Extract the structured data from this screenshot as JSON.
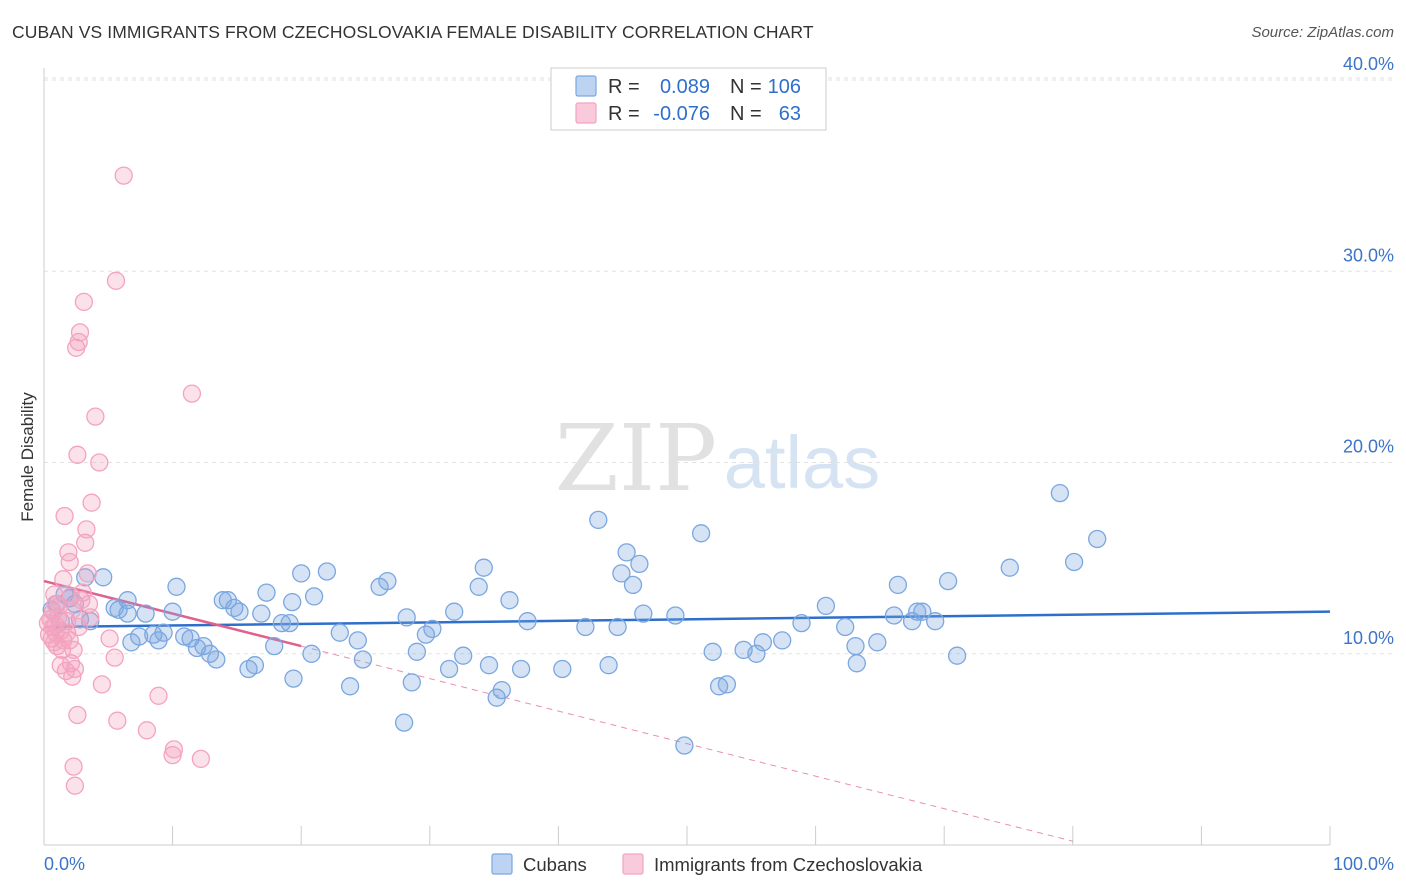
{
  "header": {
    "title": "CUBAN VS IMMIGRANTS FROM CZECHOSLOVAKIA FEMALE DISABILITY CORRELATION CHART",
    "source": "Source: ZipAtlas.com"
  },
  "watermark": {
    "zip": "ZIP",
    "atlas": "atlas"
  },
  "chart_data": {
    "type": "scatter",
    "title": "CUBAN VS IMMIGRANTS FROM CZECHOSLOVAKIA FEMALE DISABILITY CORRELATION CHART",
    "xlabel": "",
    "ylabel": "Female Disability",
    "xlim": [
      0,
      100
    ],
    "ylim": [
      0,
      40
    ],
    "x_tick_labels": {
      "left": "0.0%",
      "right": "100.0%"
    },
    "y_ticks": [
      {
        "value": 10,
        "label": "10.0%"
      },
      {
        "value": 20,
        "label": "20.0%"
      },
      {
        "value": 30,
        "label": "30.0%"
      },
      {
        "value": 40,
        "label": "40.0%"
      }
    ],
    "legend_stats": [
      {
        "r_label": "R =",
        "r_value": "0.089",
        "n_label": "N =",
        "n_value": "106"
      },
      {
        "r_label": "R =",
        "r_value": "-0.076",
        "n_label": "N =",
        "n_value": "63"
      }
    ],
    "series": [
      {
        "name": "Cubans",
        "color": "#7ba7e0",
        "line_color": "#2f6fcc",
        "trend": {
          "x0": 0,
          "y0": 11.4,
          "x1": 100,
          "y1": 12.2
        },
        "points": [
          [
            0.6,
            12.3
          ],
          [
            1.0,
            12.6
          ],
          [
            1.3,
            11.7
          ],
          [
            1.6,
            13.1
          ],
          [
            2.0,
            12.9
          ],
          [
            2.4,
            12.6
          ],
          [
            2.8,
            11.8
          ],
          [
            3.2,
            14.0
          ],
          [
            3.6,
            11.7
          ],
          [
            4.6,
            14.0
          ],
          [
            5.5,
            12.4
          ],
          [
            5.8,
            12.3
          ],
          [
            6.5,
            12.1
          ],
          [
            6.5,
            12.8
          ],
          [
            6.8,
            10.6
          ],
          [
            7.4,
            10.9
          ],
          [
            7.9,
            12.1
          ],
          [
            8.5,
            11.0
          ],
          [
            8.9,
            10.7
          ],
          [
            9.3,
            11.1
          ],
          [
            10.0,
            12.2
          ],
          [
            10.3,
            13.5
          ],
          [
            10.9,
            10.9
          ],
          [
            11.4,
            10.8
          ],
          [
            11.9,
            10.3
          ],
          [
            12.4,
            10.4
          ],
          [
            12.9,
            10.0
          ],
          [
            13.4,
            9.7
          ],
          [
            13.9,
            12.8
          ],
          [
            14.3,
            12.8
          ],
          [
            14.8,
            12.4
          ],
          [
            15.2,
            12.2
          ],
          [
            15.9,
            9.2
          ],
          [
            16.4,
            9.4
          ],
          [
            16.9,
            12.1
          ],
          [
            17.3,
            13.2
          ],
          [
            17.9,
            10.4
          ],
          [
            18.5,
            11.6
          ],
          [
            19.1,
            11.6
          ],
          [
            19.3,
            12.7
          ],
          [
            19.4,
            8.7
          ],
          [
            20.0,
            14.2
          ],
          [
            20.8,
            10.0
          ],
          [
            21.0,
            13.0
          ],
          [
            22.0,
            14.3
          ],
          [
            23.0,
            11.1
          ],
          [
            23.8,
            8.3
          ],
          [
            24.4,
            10.7
          ],
          [
            24.8,
            9.7
          ],
          [
            26.1,
            13.5
          ],
          [
            26.7,
            13.8
          ],
          [
            28.0,
            6.4
          ],
          [
            28.2,
            11.9
          ],
          [
            28.6,
            8.5
          ],
          [
            29.0,
            10.1
          ],
          [
            29.7,
            11.0
          ],
          [
            30.2,
            11.3
          ],
          [
            31.5,
            9.2
          ],
          [
            31.9,
            12.2
          ],
          [
            32.6,
            9.9
          ],
          [
            33.8,
            13.5
          ],
          [
            34.2,
            14.5
          ],
          [
            34.6,
            9.4
          ],
          [
            35.2,
            7.7
          ],
          [
            35.6,
            8.1
          ],
          [
            36.2,
            12.8
          ],
          [
            37.1,
            9.2
          ],
          [
            37.6,
            11.7
          ],
          [
            40.3,
            9.2
          ],
          [
            42.1,
            11.4
          ],
          [
            43.1,
            17.0
          ],
          [
            43.9,
            9.4
          ],
          [
            44.6,
            11.4
          ],
          [
            44.9,
            14.2
          ],
          [
            45.3,
            15.3
          ],
          [
            45.8,
            13.6
          ],
          [
            46.3,
            14.7
          ],
          [
            46.6,
            12.1
          ],
          [
            49.1,
            12.0
          ],
          [
            49.8,
            5.2
          ],
          [
            51.1,
            16.3
          ],
          [
            52.0,
            10.1
          ],
          [
            52.5,
            8.3
          ],
          [
            53.1,
            8.4
          ],
          [
            54.4,
            10.2
          ],
          [
            55.4,
            10.0
          ],
          [
            55.9,
            10.6
          ],
          [
            57.4,
            10.7
          ],
          [
            58.9,
            11.6
          ],
          [
            60.8,
            12.5
          ],
          [
            62.3,
            11.4
          ],
          [
            63.1,
            10.4
          ],
          [
            63.2,
            9.5
          ],
          [
            64.8,
            10.6
          ],
          [
            66.1,
            12.0
          ],
          [
            66.4,
            13.6
          ],
          [
            67.5,
            11.7
          ],
          [
            67.9,
            12.2
          ],
          [
            68.3,
            12.2
          ],
          [
            69.3,
            11.7
          ],
          [
            70.3,
            13.8
          ],
          [
            71.0,
            9.9
          ],
          [
            75.1,
            14.5
          ],
          [
            79.0,
            18.4
          ],
          [
            80.1,
            14.8
          ],
          [
            81.9,
            16.0
          ]
        ]
      },
      {
        "name": "Immigrants from Czechoslovakia",
        "color": "#f4a3bf",
        "line_color": "#e0608e",
        "trend": {
          "x0": 0,
          "y0": 13.8,
          "x1": 20,
          "y1": 10.4
        },
        "trend_dashed": {
          "x0": 20,
          "y0": 10.4,
          "x1": 80,
          "y1": 0.2
        },
        "points": [
          [
            0.3,
            11.6
          ],
          [
            0.4,
            11.0
          ],
          [
            0.5,
            11.8
          ],
          [
            0.6,
            10.8
          ],
          [
            0.7,
            12.2
          ],
          [
            0.7,
            11.4
          ],
          [
            0.8,
            13.1
          ],
          [
            0.8,
            10.6
          ],
          [
            0.9,
            11.5
          ],
          [
            0.9,
            11.1
          ],
          [
            1.0,
            10.4
          ],
          [
            1.1,
            11.9
          ],
          [
            1.2,
            12.5
          ],
          [
            1.3,
            9.4
          ],
          [
            1.3,
            11.2
          ],
          [
            1.4,
            10.2
          ],
          [
            1.5,
            13.9
          ],
          [
            1.6,
            17.2
          ],
          [
            1.7,
            9.1
          ],
          [
            1.8,
            11.7
          ],
          [
            1.9,
            15.3
          ],
          [
            2.0,
            14.8
          ],
          [
            2.0,
            10.7
          ],
          [
            2.1,
            13.0
          ],
          [
            2.1,
            9.5
          ],
          [
            2.2,
            12.3
          ],
          [
            2.3,
            10.2
          ],
          [
            2.4,
            9.2
          ],
          [
            2.5,
            26.0
          ],
          [
            2.6,
            20.4
          ],
          [
            2.7,
            26.3
          ],
          [
            2.8,
            26.8
          ],
          [
            2.9,
            12.8
          ],
          [
            3.0,
            13.2
          ],
          [
            3.1,
            28.4
          ],
          [
            3.2,
            15.8
          ],
          [
            3.3,
            16.5
          ],
          [
            3.4,
            14.2
          ],
          [
            3.5,
            12.6
          ],
          [
            3.7,
            17.9
          ],
          [
            4.0,
            22.4
          ],
          [
            4.3,
            20.0
          ],
          [
            4.5,
            8.4
          ],
          [
            5.1,
            10.8
          ],
          [
            5.5,
            9.8
          ],
          [
            5.6,
            29.5
          ],
          [
            5.7,
            6.5
          ],
          [
            6.2,
            35.0
          ],
          [
            8.0,
            6.0
          ],
          [
            8.9,
            7.8
          ],
          [
            10.0,
            4.7
          ],
          [
            10.1,
            5.0
          ],
          [
            11.5,
            23.6
          ],
          [
            12.2,
            4.5
          ],
          [
            2.3,
            4.1
          ],
          [
            2.4,
            3.1
          ],
          [
            2.6,
            6.8
          ],
          [
            2.2,
            8.8
          ],
          [
            1.5,
            10.7
          ],
          [
            0.9,
            12.6
          ],
          [
            3.6,
            11.9
          ],
          [
            1.8,
            11.1
          ],
          [
            2.7,
            11.4
          ]
        ]
      }
    ]
  }
}
